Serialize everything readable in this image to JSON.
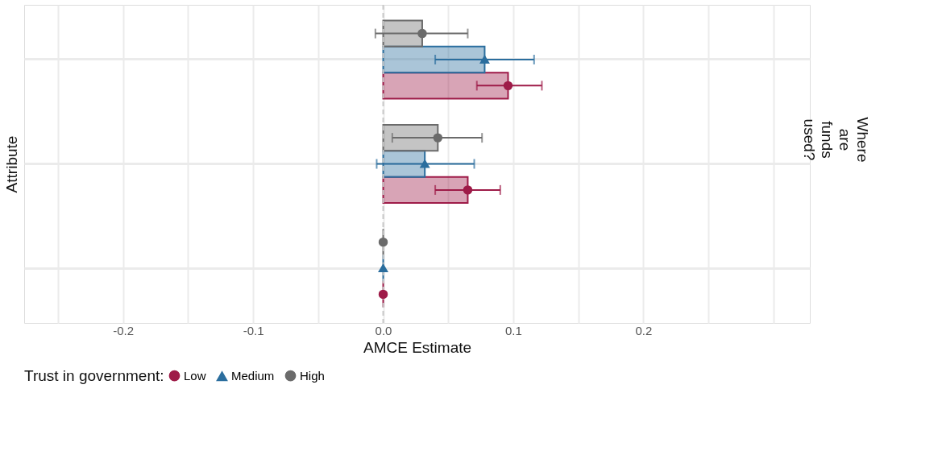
{
  "chart_data": {
    "type": "bar",
    "orientation": "horizontal",
    "xlabel": "AMCE Estimate",
    "ylabel": "Attribute",
    "legend_title": "Trust in government:",
    "legend": "bottom",
    "grid": true,
    "categories": [
      null,
      null,
      null
    ],
    "xlim": [
      -0.276,
      0.328
    ],
    "xticks": [
      {
        "value": -0.25,
        "label": null
      },
      -0.2,
      {
        "value": -0.15,
        "label": null
      },
      -0.1,
      {
        "value": -0.05,
        "label": null
      },
      {
        "value": 0,
        "label": "0.0"
      },
      {
        "value": 0.05,
        "label": null
      },
      0.1,
      {
        "value": 0.15,
        "label": null
      },
      0.2,
      {
        "value": 0.25,
        "label": null
      },
      {
        "value": 0.3,
        "label": null
      }
    ],
    "series": [
      {
        "name": "Low",
        "color": "#9e1b48",
        "values": [
          0.096,
          0.065,
          0
        ]
      },
      {
        "name": "Medium",
        "color": "#2b6e9e",
        "values": [
          0.078,
          0.032,
          0
        ]
      },
      {
        "name": "High",
        "color": "#6b6b6b",
        "values": [
          0.03,
          0.042,
          0
        ]
      },
      {
        "type": "scatter",
        "color": "#9e1b48",
        "marker": "circle",
        "values": [
          0.096,
          0.065,
          0
        ],
        "errors": [
          [
            0.072,
            0.122
          ],
          [
            0.04,
            0.09
          ],
          null
        ]
      },
      {
        "type": "scatter",
        "color": "#2b6e9e",
        "marker": "triangle",
        "values": [
          0.078,
          0.032,
          0
        ],
        "errors": [
          [
            0.04,
            0.116
          ],
          [
            -0.005,
            0.07
          ],
          null
        ]
      },
      {
        "type": "scatter",
        "color": "#6b6b6b",
        "marker": "circle",
        "values": [
          0.03,
          0.042,
          0
        ],
        "errors": [
          [
            -0.006,
            0.065
          ],
          [
            0.007,
            0.076
          ],
          null
        ]
      }
    ],
    "ref_lines": [
      {
        "axis": "x",
        "value": 0,
        "label": null,
        "color": "#c8c8c8",
        "line_style": "dashed"
      }
    ],
    "annotations": [
      "Where are funds used?"
    ]
  }
}
